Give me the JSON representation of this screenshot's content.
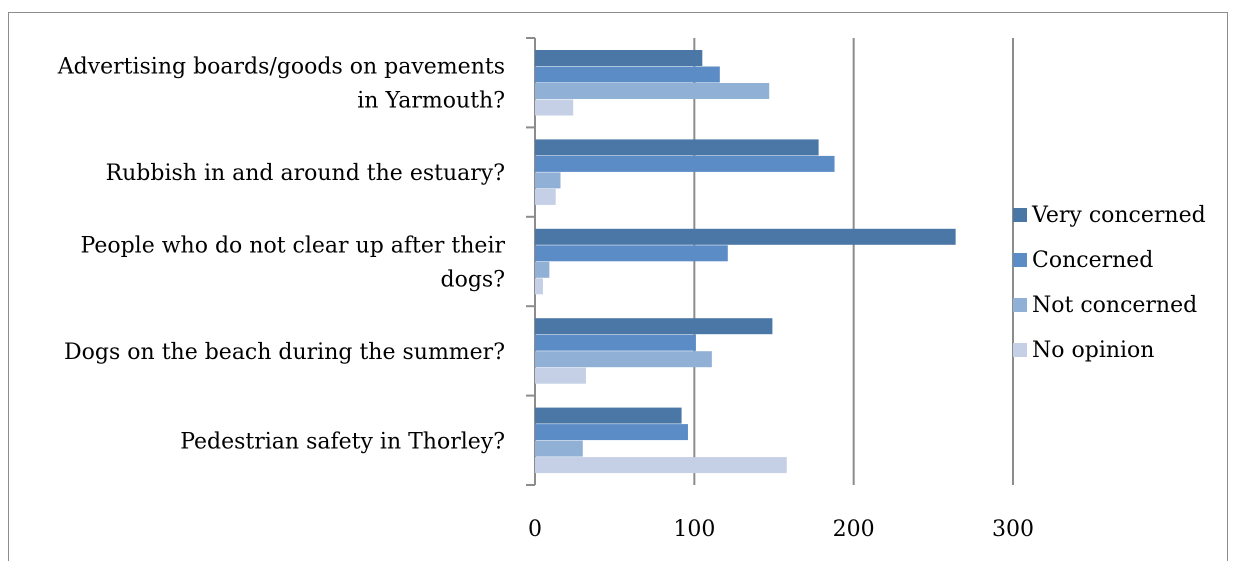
{
  "chart_data": {
    "type": "bar",
    "orientation": "horizontal",
    "title": "",
    "xlabel": "",
    "ylabel": "",
    "categories": [
      [
        "Advertising boards/goods on pavements",
        "in Yarmouth?"
      ],
      [
        "Rubbish in and around the estuary?"
      ],
      [
        "People who do not clear up after their",
        "dogs?"
      ],
      [
        "Dogs on the beach during the summer?"
      ],
      [
        "Pedestrian safety in Thorley?"
      ]
    ],
    "series": [
      {
        "name": "Very concerned",
        "color": "#4a77a6",
        "values": [
          105,
          178,
          264,
          149,
          92
        ]
      },
      {
        "name": "Concerned",
        "color": "#5b8cc6",
        "values": [
          116,
          188,
          121,
          101,
          96
        ]
      },
      {
        "name": "Not concerned",
        "color": "#91b0d6",
        "values": [
          147,
          16,
          9,
          111,
          30
        ]
      },
      {
        "name": "No opinion",
        "color": "#c5d0e6",
        "values": [
          24,
          13,
          5,
          32,
          158
        ]
      }
    ],
    "xlim": [
      0,
      300
    ],
    "xticks": [
      "0",
      "100",
      "200",
      "300"
    ],
    "grid": true,
    "legend_position": "right"
  }
}
